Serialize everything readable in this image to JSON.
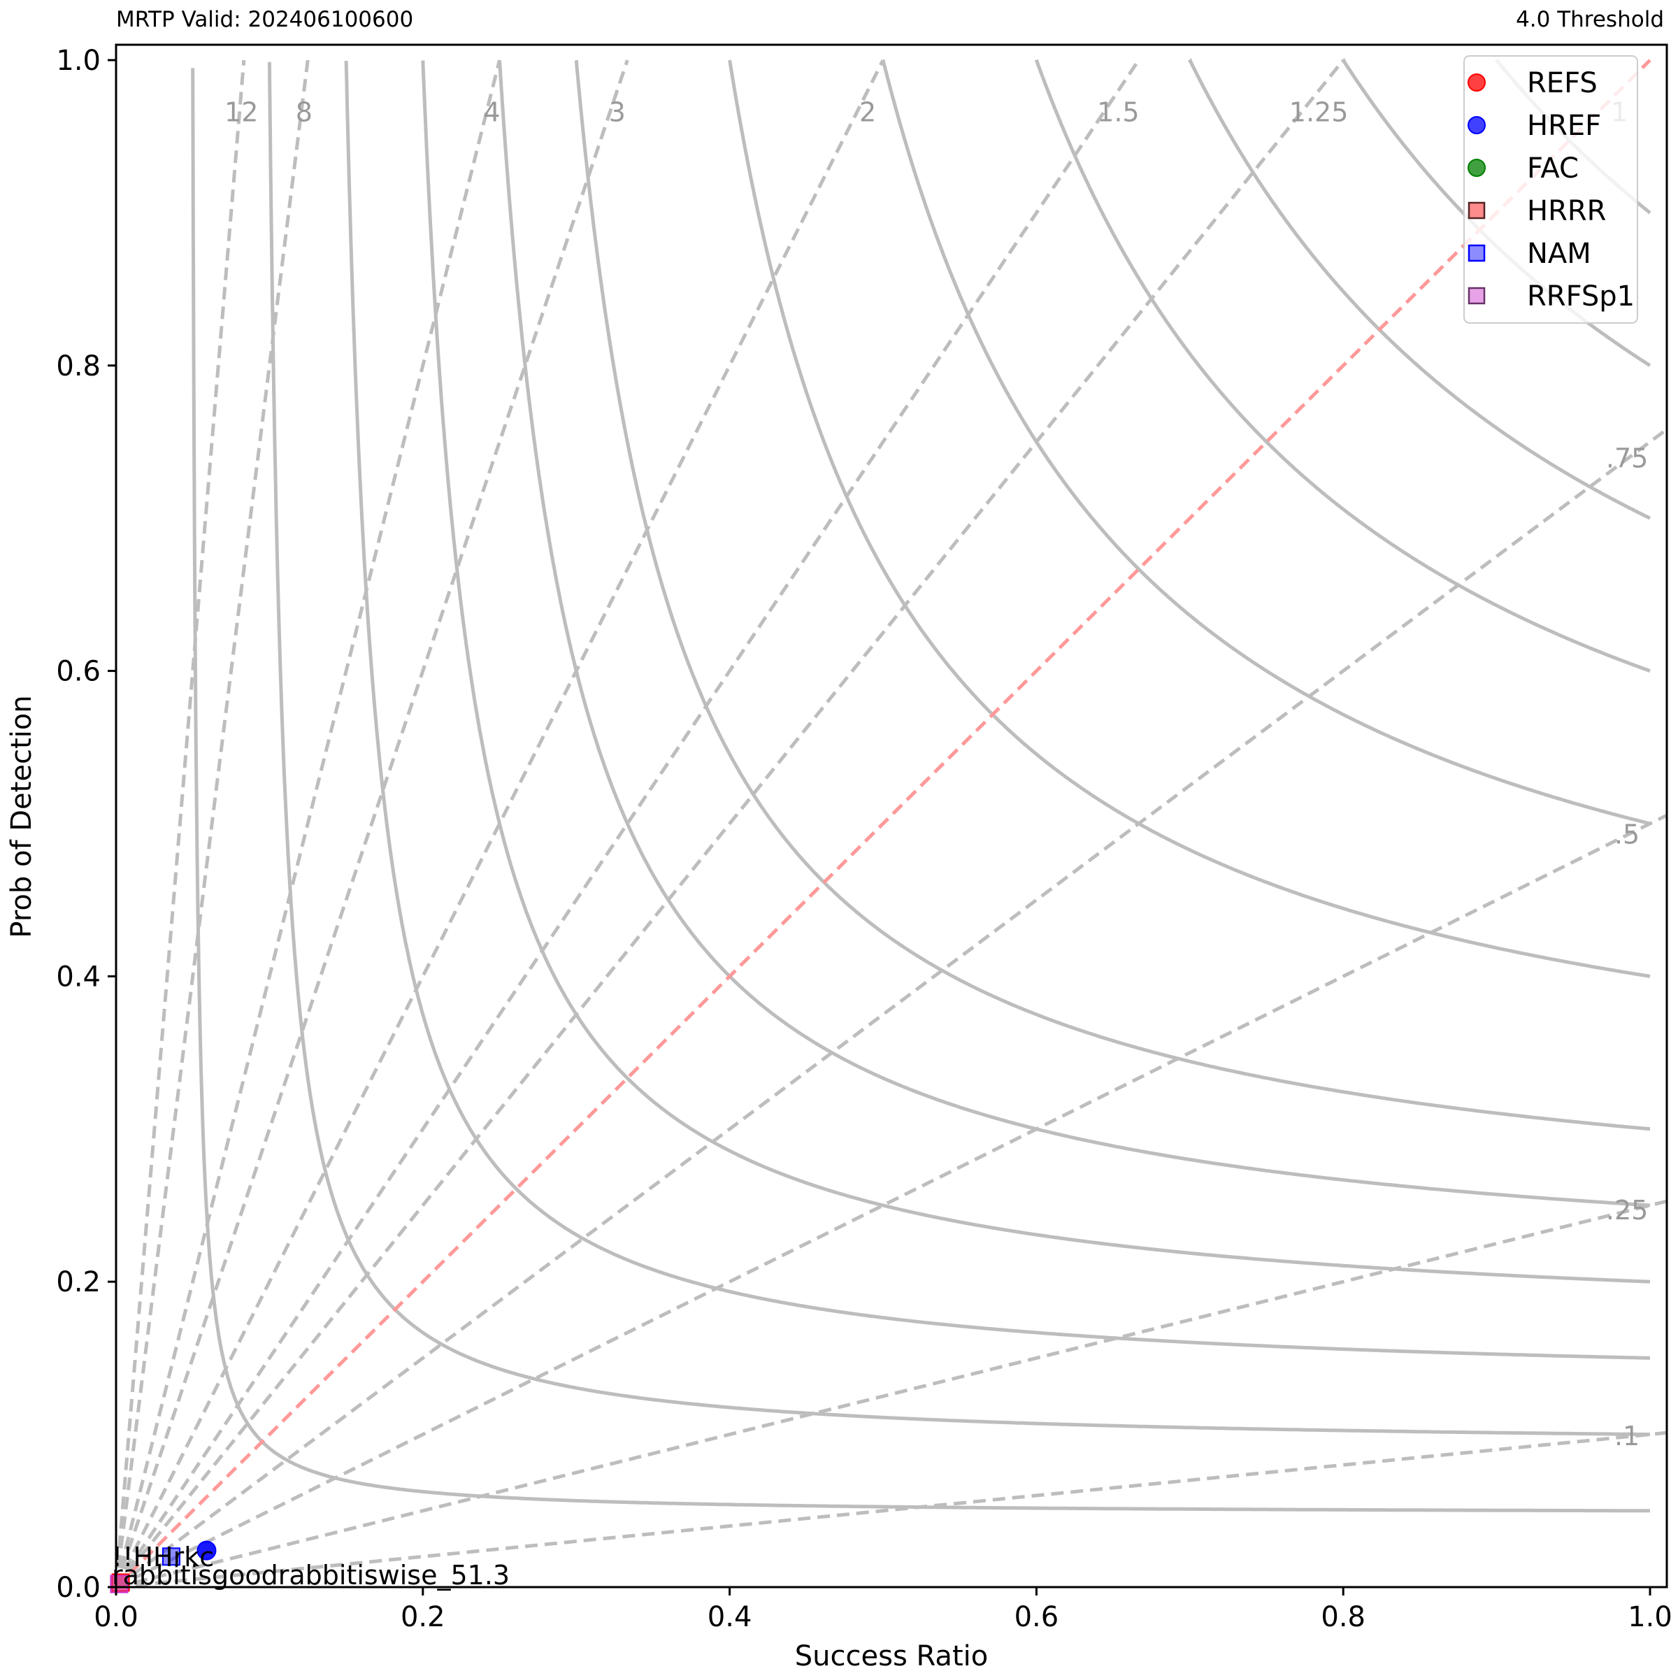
{
  "header": {
    "left": "MRTP Valid: 202406100600",
    "right": "4.0 Threshold"
  },
  "chart_data": {
    "type": "scatter",
    "title": "",
    "xlabel": "Success Ratio",
    "ylabel": "Prob of Detection",
    "xlim": [
      0,
      1
    ],
    "ylim": [
      0,
      1
    ],
    "xticks": [
      0.0,
      0.2,
      0.4,
      0.6,
      0.8,
      1.0
    ],
    "yticks": [
      0.0,
      0.2,
      0.4,
      0.6,
      0.8,
      1.0
    ],
    "xtick_labels": [
      "0.0",
      "0.2",
      "0.4",
      "0.6",
      "0.8",
      "1.0"
    ],
    "ytick_labels": [
      "0.0",
      "0.2",
      "0.4",
      "0.6",
      "0.8",
      "1.0"
    ],
    "grid": false,
    "legend_position": "top-right",
    "bias_lines": [
      {
        "bias": 12,
        "label": "12"
      },
      {
        "bias": 8,
        "label": "8"
      },
      {
        "bias": 4,
        "label": "4"
      },
      {
        "bias": 3,
        "label": "3"
      },
      {
        "bias": 2,
        "label": "2"
      },
      {
        "bias": 1.5,
        "label": "1.5"
      },
      {
        "bias": 1.25,
        "label": "1.25"
      },
      {
        "bias": 1,
        "label": "1",
        "color": "#ff9999"
      },
      {
        "bias": 0.75,
        "label": ".75"
      },
      {
        "bias": 0.5,
        "label": ".5"
      },
      {
        "bias": 0.25,
        "label": ".25"
      },
      {
        "bias": 0.1,
        "label": ".1"
      }
    ],
    "csi_contours": [
      0.05,
      0.1,
      0.15,
      0.2,
      0.25,
      0.3,
      0.4,
      0.5,
      0.6,
      0.7,
      0.8,
      0.9
    ],
    "series": [
      {
        "name": "REFS",
        "marker": "circle",
        "color": "#ff0000",
        "points": []
      },
      {
        "name": "HREF",
        "marker": "circle",
        "color": "#0000ff",
        "points": [
          {
            "x": 0.059,
            "y": 0.024
          }
        ]
      },
      {
        "name": "FAC",
        "marker": "circle",
        "color": "#008000",
        "points": []
      },
      {
        "name": "HRRR",
        "marker": "square",
        "color": "#ff0000",
        "points": [
          {
            "x": 0.003,
            "y": 0.003
          }
        ]
      },
      {
        "name": "NAM",
        "marker": "square",
        "color": "#0000ff",
        "points": [
          {
            "x": 0.036,
            "y": 0.02
          }
        ]
      },
      {
        "name": "RRFSp1",
        "marker": "square",
        "color": "#cc33cc",
        "points": [
          {
            "x": 0.002,
            "y": 0.002
          }
        ]
      }
    ],
    "annotations": [
      {
        "text": "rabbitisgoodrabbitiswise_51.3",
        "x": 0.0,
        "y": 0.0
      },
      {
        "text": "!!HHrkc",
        "x": 0.0,
        "y": 0.012
      }
    ]
  }
}
